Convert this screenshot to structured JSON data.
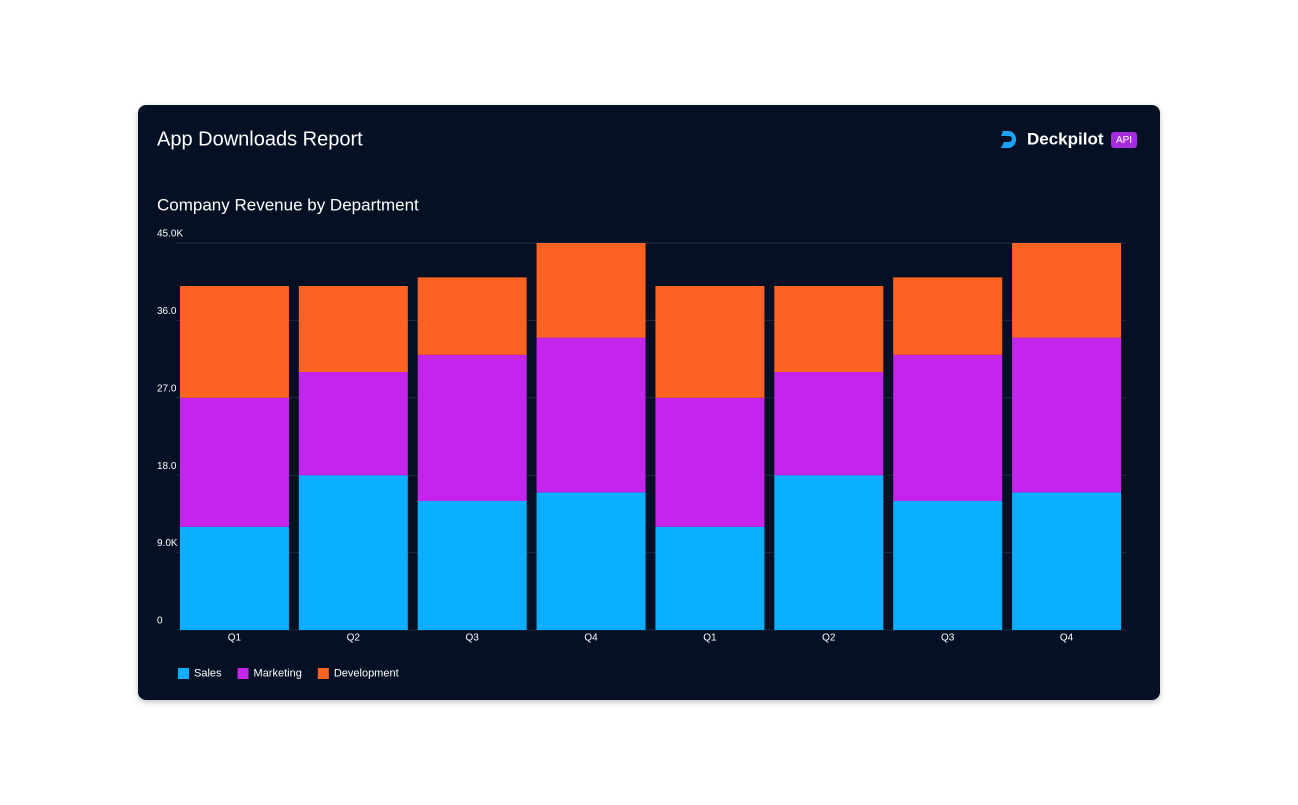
{
  "header": {
    "title": "App Downloads Report",
    "brand": "Deckpilot",
    "badge": "API"
  },
  "chart_data": {
    "type": "stacked_bar",
    "title": "Company Revenue by Department",
    "categories": [
      "Q1",
      "Q2",
      "Q3",
      "Q4",
      "Q1",
      "Q2",
      "Q3",
      "Q4"
    ],
    "series": [
      {
        "name": "Sales",
        "color": "#0aafff",
        "values": [
          12000,
          18000,
          15000,
          16000,
          12000,
          18000,
          15000,
          16000
        ]
      },
      {
        "name": "Marketing",
        "color": "#c424ec",
        "values": [
          15000,
          12000,
          17000,
          18000,
          15000,
          12000,
          17000,
          18000
        ]
      },
      {
        "name": "Development",
        "color": "#fc6322",
        "values": [
          13000,
          10000,
          9000,
          11000,
          13000,
          10000,
          9000,
          11000
        ]
      }
    ],
    "ylim": [
      0,
      45000
    ],
    "yticks": [
      0,
      {
        "value": 9000,
        "label": "9.0K"
      },
      {
        "value": 18000,
        "label": "18.0"
      },
      {
        "value": 27000,
        "label": "27.0"
      },
      {
        "value": 36000,
        "label": "36.0"
      },
      {
        "value": 45000,
        "label": "45.0K"
      }
    ],
    "grid": true,
    "legend": "bottom-left"
  }
}
